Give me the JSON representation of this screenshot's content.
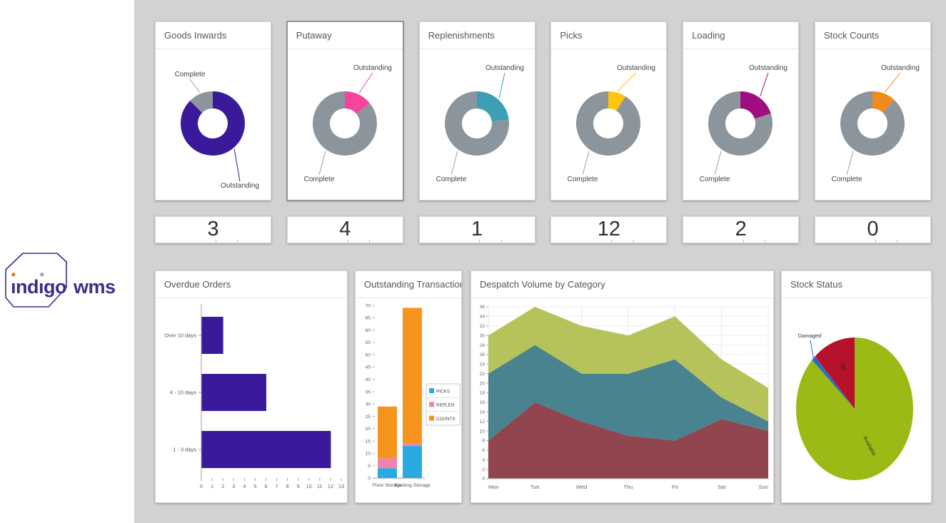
{
  "logo": {
    "part1": "indigo",
    "part2": "wms",
    "accent_orange": "#e8732b",
    "accent_gray": "#9aa2a8",
    "brand_purple": "#3b2e8c"
  },
  "slice_labels": {
    "complete": "Complete",
    "outstanding": "Outstanding"
  },
  "colors": {
    "background": "#d2d2d2",
    "card": "#ffffff",
    "donut_complete_gray": "#8c959b",
    "axis_text": "#666666"
  },
  "chart_data": [
    {
      "id": "goods-inwards",
      "type": "donut",
      "title": "Goods Inwards",
      "badge_value": "3",
      "selected": false,
      "slices": [
        {
          "label": "Outstanding",
          "color": "#3a1a9a",
          "fraction": 0.875
        },
        {
          "label": "Complete",
          "color": "#8c959b",
          "fraction": 0.125
        }
      ]
    },
    {
      "id": "putaway",
      "type": "donut",
      "title": "Putaway",
      "badge_value": "4",
      "selected": true,
      "slices": [
        {
          "label": "Outstanding",
          "color": "#f4449b",
          "fraction": 0.14
        },
        {
          "label": "Complete",
          "color": "#8c959b",
          "fraction": 0.86
        }
      ]
    },
    {
      "id": "replenishments",
      "type": "donut",
      "title": "Replenishments",
      "badge_value": "1",
      "selected": false,
      "slices": [
        {
          "label": "Outstanding",
          "color": "#3d9fb5",
          "fraction": 0.23
        },
        {
          "label": "Complete",
          "color": "#8c959b",
          "fraction": 0.77
        }
      ]
    },
    {
      "id": "picks",
      "type": "donut",
      "title": "Picks",
      "badge_value": "12",
      "selected": false,
      "slices": [
        {
          "label": "Outstanding",
          "color": "#ffc40c",
          "fraction": 0.09
        },
        {
          "label": "Complete",
          "color": "#8c959b",
          "fraction": 0.91
        }
      ]
    },
    {
      "id": "loading",
      "type": "donut",
      "title": "Loading",
      "badge_value": "2",
      "selected": false,
      "slices": [
        {
          "label": "Outstanding",
          "color": "#a00d7e",
          "fraction": 0.2
        },
        {
          "label": "Complete",
          "color": "#8c959b",
          "fraction": 0.8
        }
      ]
    },
    {
      "id": "stock-counts",
      "type": "donut",
      "title": "Stock Counts",
      "badge_value": "0",
      "selected": false,
      "slices": [
        {
          "label": "Outstanding",
          "color": "#f08a1d",
          "fraction": 0.12
        },
        {
          "label": "Complete",
          "color": "#8c959b",
          "fraction": 0.88
        }
      ]
    },
    {
      "id": "overdue-orders",
      "type": "bar",
      "orientation": "horizontal",
      "title": "Overdue Orders",
      "categories": [
        "Over 10 days",
        "4 - 10 days",
        "1 - 3 days"
      ],
      "values": [
        2,
        6,
        12
      ],
      "bar_color": "#3a1a9a",
      "xlim": [
        0,
        13
      ],
      "xtick_step": 1,
      "grid": false
    },
    {
      "id": "outstanding-transactions-by-zone",
      "type": "stacked-bar",
      "title": "Outstanding Transactions by Zone",
      "categories": [
        "Floor Storage",
        "Racking Storage"
      ],
      "series": [
        {
          "name": "PICKS",
          "color": "#29abe2",
          "values": [
            4,
            13
          ]
        },
        {
          "name": "REPLEN",
          "color": "#f083ae",
          "values": [
            4,
            1
          ]
        },
        {
          "name": "COUNTS",
          "color": "#f7941e",
          "values": [
            21,
            55
          ]
        }
      ],
      "ylim": [
        0,
        70
      ],
      "ytick_step": 5,
      "legend_position": "middle-right",
      "grid": false
    },
    {
      "id": "despatch-volume-by-category",
      "type": "stacked-area",
      "title": "Despatch Volume by Category",
      "x": [
        "Mon",
        "Tue",
        "Wed",
        "Thu",
        "Fri",
        "Sat",
        "Sun"
      ],
      "series": [
        {
          "name": "series-1",
          "color": "#90454f",
          "values": [
            8,
            16,
            12,
            9,
            8,
            12.5,
            10
          ]
        },
        {
          "name": "series-2",
          "color": "#49838f",
          "values": [
            14,
            12,
            10,
            13,
            17,
            4.5,
            2
          ]
        },
        {
          "name": "series-3",
          "color": "#b5c35a",
          "values": [
            8,
            8,
            10,
            8,
            9,
            8,
            7
          ]
        }
      ],
      "cumulative_tops": {
        "series-1": [
          8,
          16,
          12,
          9,
          8,
          12.5,
          10
        ],
        "series-2": [
          22,
          28,
          22,
          22,
          25,
          17,
          12
        ],
        "series-3": [
          30,
          36,
          32,
          30,
          34,
          25,
          19
        ]
      },
      "ylim": [
        0,
        36
      ],
      "ytick_step": 2,
      "grid": true,
      "legend": false
    },
    {
      "id": "stock-status",
      "type": "pie",
      "title": "Stock Status",
      "slices": [
        {
          "label": "Available",
          "color": "#9cba16",
          "fraction": 0.87
        },
        {
          "label": "Damaged",
          "color": "#2a6fbf",
          "fraction": 0.012
        },
        {
          "label": "QC",
          "color": "#b6122b",
          "fraction": 0.118
        }
      ]
    }
  ]
}
